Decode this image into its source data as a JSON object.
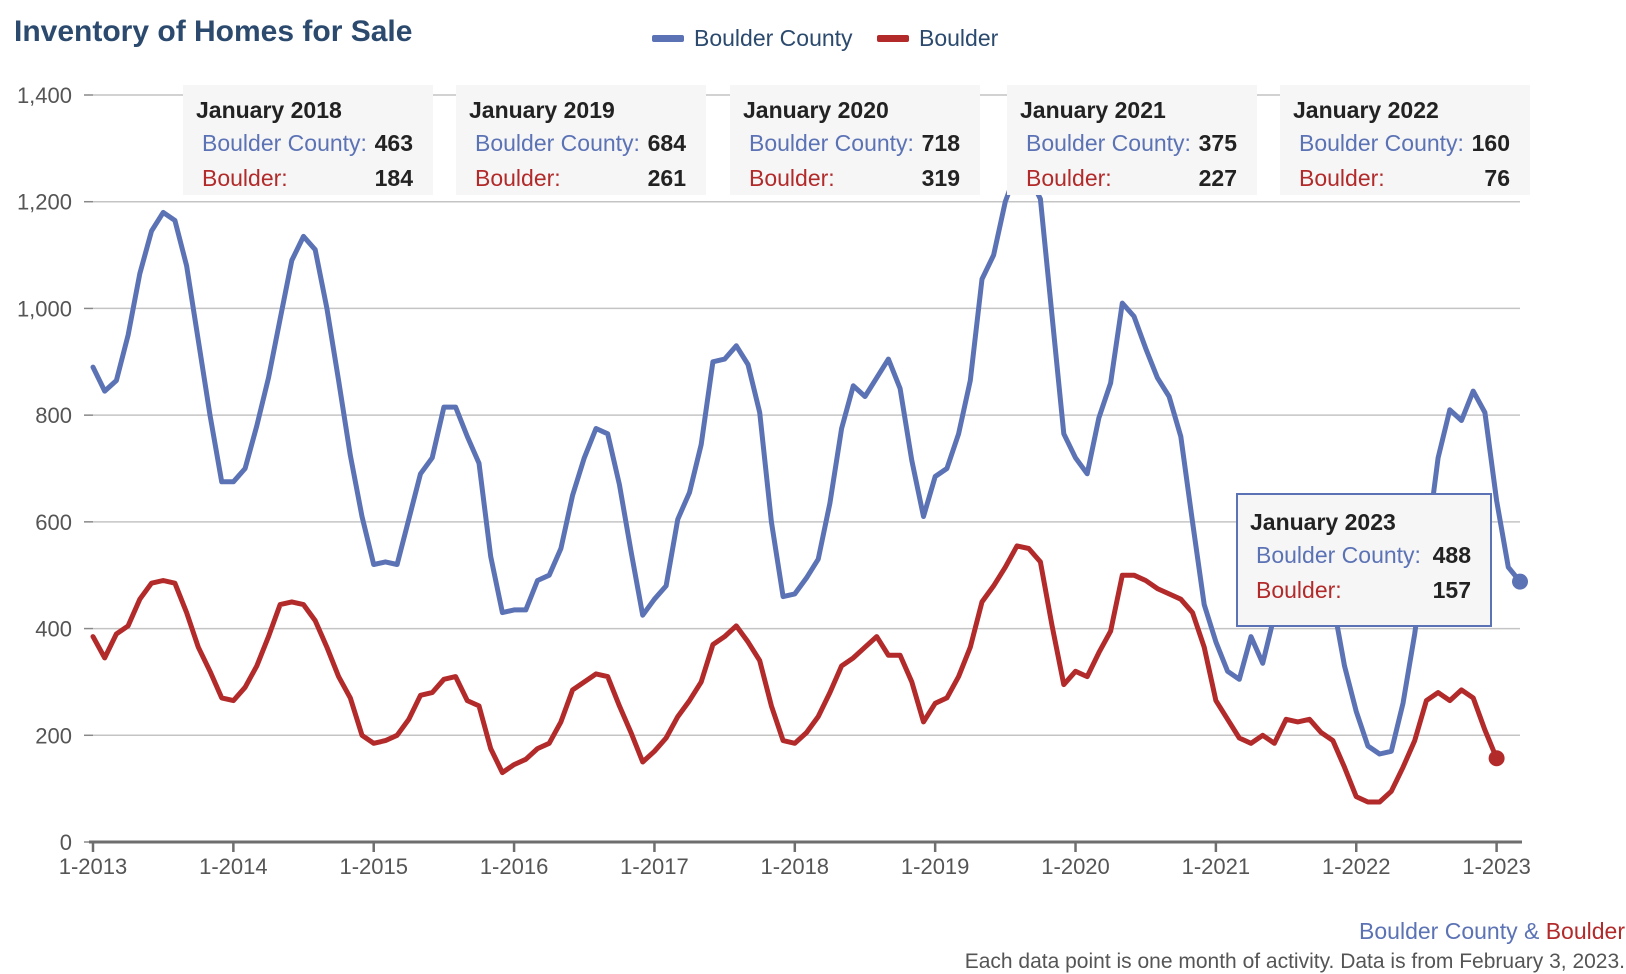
{
  "chart_data": {
    "type": "line",
    "title": "Inventory of Homes for Sale",
    "xlabel": "",
    "ylabel": "",
    "ylim": [
      0,
      1400
    ],
    "y_ticks": [
      "0",
      "200",
      "400",
      "600",
      "800",
      "1,000",
      "1,200",
      "1,400"
    ],
    "x_tick_labels": [
      "1-2013",
      "1-2014",
      "1-2015",
      "1-2016",
      "1-2017",
      "1-2018",
      "1-2019",
      "1-2020",
      "1-2021",
      "1-2022",
      "1-2023"
    ],
    "x_start_label": "1-2013",
    "grid": true,
    "legend_position": "top-center",
    "colors": {
      "Boulder County": "#5b72b5",
      "Boulder": "#b22a2a"
    },
    "series": [
      {
        "name": "Boulder County",
        "color": "#5b72b5",
        "values": [
          890,
          845,
          865,
          950,
          1065,
          1145,
          1180,
          1165,
          1080,
          940,
          800,
          675,
          675,
          700,
          780,
          870,
          980,
          1090,
          1135,
          1110,
          1000,
          865,
          725,
          610,
          520,
          525,
          520,
          605,
          690,
          720,
          815,
          815,
          760,
          710,
          535,
          430,
          435,
          435,
          490,
          500,
          550,
          650,
          720,
          775,
          765,
          670,
          545,
          425,
          455,
          480,
          605,
          655,
          745,
          900,
          905,
          930,
          895,
          805,
          600,
          460,
          465,
          495,
          530,
          635,
          775,
          855,
          835,
          870,
          905,
          850,
          715,
          610,
          685,
          700,
          765,
          865,
          1055,
          1100,
          1200,
          1260,
          1250,
          1205,
          985,
          765,
          720,
          690,
          795,
          860,
          1010,
          985,
          925,
          870,
          835,
          760,
          600,
          445,
          375,
          320,
          305,
          385,
          335,
          425,
          450,
          445,
          455,
          455,
          450,
          330,
          245,
          180,
          165,
          170,
          260,
          390,
          550,
          720,
          810,
          790,
          845,
          805,
          640,
          515,
          488
        ]
      },
      {
        "name": "Boulder",
        "color": "#b22a2a",
        "values": [
          385,
          345,
          390,
          405,
          455,
          485,
          490,
          485,
          430,
          365,
          320,
          270,
          265,
          290,
          330,
          385,
          445,
          450,
          445,
          415,
          365,
          310,
          270,
          200,
          185,
          190,
          200,
          230,
          275,
          280,
          305,
          310,
          265,
          255,
          175,
          130,
          145,
          155,
          175,
          185,
          225,
          285,
          300,
          315,
          310,
          255,
          205,
          150,
          170,
          195,
          235,
          265,
          300,
          370,
          385,
          405,
          375,
          340,
          255,
          190,
          185,
          205,
          235,
          280,
          330,
          345,
          365,
          385,
          350,
          350,
          300,
          225,
          260,
          270,
          310,
          365,
          450,
          480,
          515,
          555,
          550,
          525,
          405,
          295,
          320,
          310,
          355,
          395,
          500,
          500,
          490,
          475,
          465,
          455,
          430,
          365,
          265,
          230,
          195,
          185,
          200,
          185,
          230,
          225,
          230,
          205,
          190,
          140,
          85,
          75,
          75,
          95,
          140,
          190,
          265,
          280,
          265,
          285,
          270,
          210,
          157
        ]
      }
    ],
    "tooltips": [
      {
        "title": "January 2018",
        "county_label": "Boulder County:",
        "county_value": "463",
        "city_label": "Boulder:",
        "city_value": "184"
      },
      {
        "title": "January 2019",
        "county_label": "Boulder County:",
        "county_value": "684",
        "city_label": "Boulder:",
        "city_value": "261"
      },
      {
        "title": "January 2020",
        "county_label": "Boulder County:",
        "county_value": "718",
        "city_label": "Boulder:",
        "city_value": "319"
      },
      {
        "title": "January 2021",
        "county_label": "Boulder County:",
        "county_value": "375",
        "city_label": "Boulder:",
        "city_value": "227"
      },
      {
        "title": "January 2022",
        "county_label": "Boulder County:",
        "county_value": "160",
        "city_label": "Boulder:",
        "city_value": "76"
      },
      {
        "title": "January 2023",
        "county_label": "Boulder County:",
        "county_value": "488",
        "city_label": "Boulder:",
        "city_value": "157"
      }
    ]
  },
  "legend": {
    "county": "Boulder County",
    "city": "Boulder"
  },
  "credit": {
    "county": "Boulder County",
    "amp": " & ",
    "city": "Boulder"
  },
  "footnote": "Each data point is one month of activity. Data is from February 3, 2023."
}
